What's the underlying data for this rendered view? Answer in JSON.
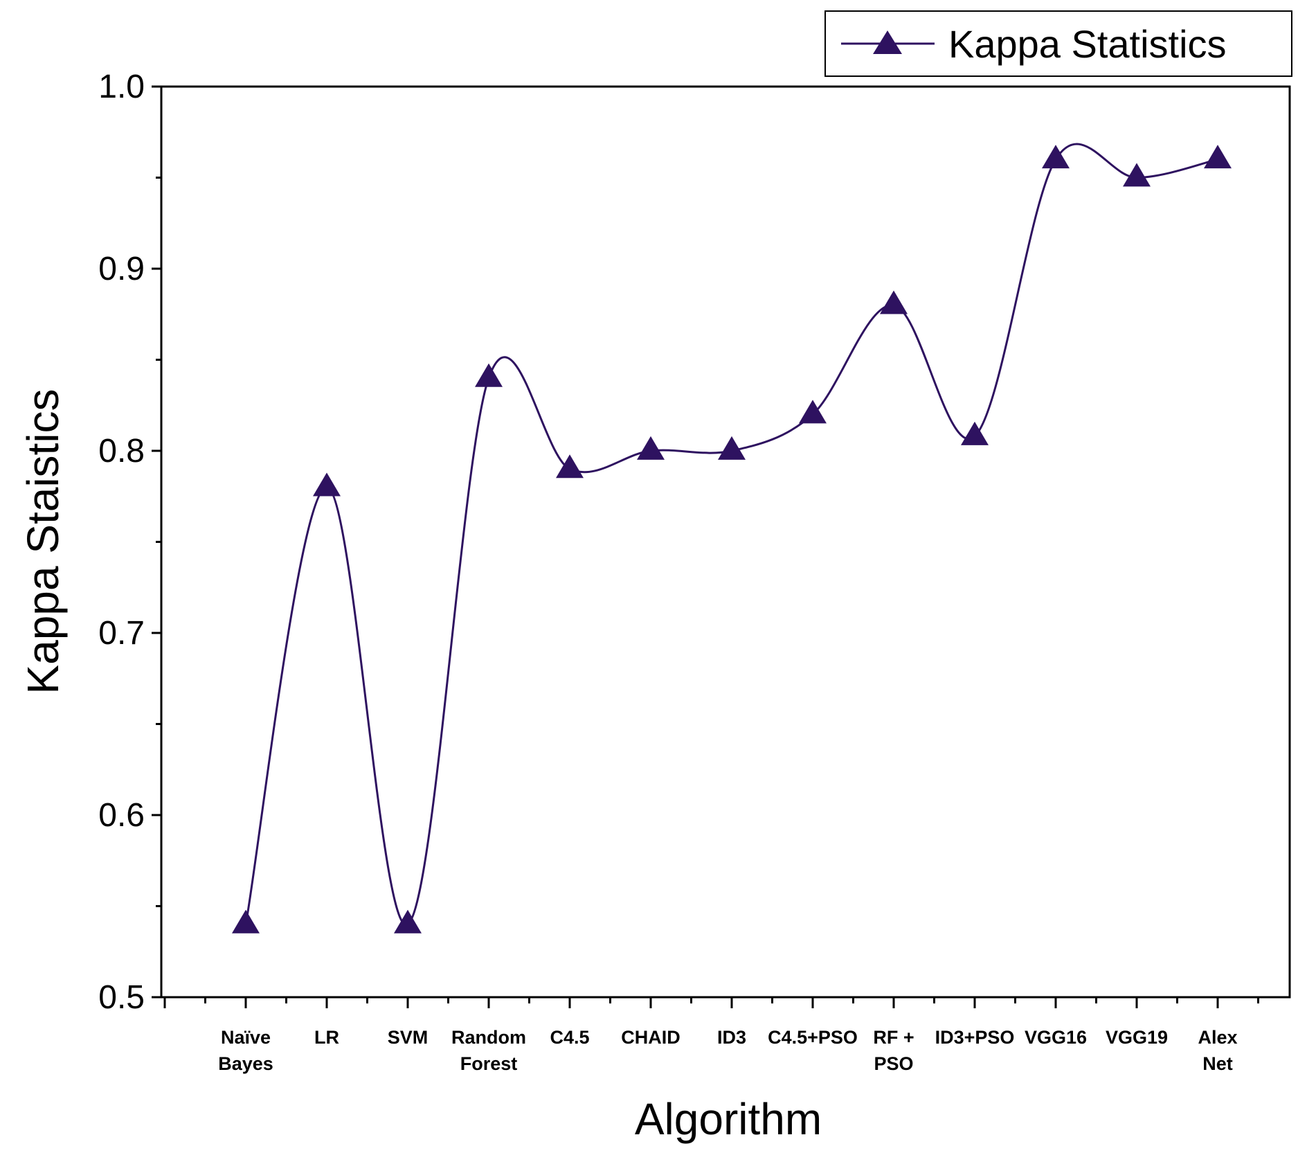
{
  "chart_data": {
    "type": "line",
    "title": "",
    "xlabel": "Algorithm",
    "ylabel": "Kappa Staistics",
    "ylim": [
      0.5,
      1.0
    ],
    "yticks": [
      "0.5",
      "0.6",
      "0.7",
      "0.8",
      "0.9",
      "1.0"
    ],
    "categories": [
      [
        "Naïve",
        "Bayes"
      ],
      [
        "LR"
      ],
      [
        "SVM"
      ],
      [
        "Random",
        "Forest"
      ],
      [
        "C4.5"
      ],
      [
        "CHAID"
      ],
      [
        "ID3"
      ],
      [
        "C4.5+PSO"
      ],
      [
        "RF +",
        "PSO"
      ],
      [
        "ID3+PSO"
      ],
      [
        "VGG16"
      ],
      [
        "VGG19"
      ],
      [
        "Alex",
        "Net"
      ]
    ],
    "series": [
      {
        "name": "Kappa Statistics",
        "color": "#2e1260",
        "marker": "triangle",
        "smooth": true,
        "values": [
          0.54,
          0.78,
          0.54,
          0.84,
          0.79,
          0.8,
          0.8,
          0.82,
          0.88,
          0.808,
          0.96,
          0.95,
          0.96
        ]
      }
    ],
    "legend": {
      "position": "top-right",
      "label": "Kappa Statistics"
    },
    "grid": false
  }
}
